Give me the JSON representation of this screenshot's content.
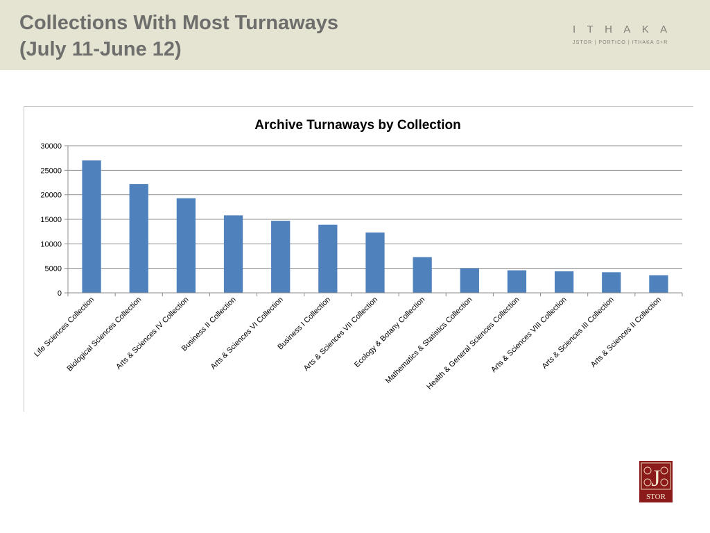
{
  "header": {
    "title_line1": "Collections With Most Turnaways",
    "title_line2": "(July 11-June 12)",
    "brand_word": "ITHAKA",
    "brand_subtitle": "JSTOR | PORTICO | ITHAKA S+R"
  },
  "logo": {
    "top_letter": "J",
    "bottom_text": "STOR"
  },
  "colors": {
    "header_bg": "#e5e3d1",
    "bar": "#4f81bd",
    "logo_red": "#8b1a1a"
  },
  "chart_data": {
    "type": "bar",
    "title": "Archive Turnaways by Collection",
    "xlabel": "",
    "ylabel": "",
    "ylim": [
      0,
      30000
    ],
    "yticks": [
      0,
      5000,
      10000,
      15000,
      20000,
      25000,
      30000
    ],
    "grid": true,
    "legend": "none",
    "categories": [
      "Life Sciences Collection",
      "Biological Sciences Collection",
      "Arts & Sciences IV Collection",
      "Business II Collection",
      "Arts & Sciences VI Collection",
      "Business I Collection",
      "Arts & Sciences VII Collection",
      "Ecology & Botany Collection",
      "Mathematics & Statistics Collection",
      "Health & General Sciences Collection",
      "Arts & Sciences VIII Collection",
      "Arts & Sciences III Collection",
      "Arts & Sciences II Collection"
    ],
    "values": [
      27000,
      22200,
      19300,
      15800,
      14700,
      13900,
      12300,
      7300,
      5000,
      4600,
      4400,
      4200,
      3600
    ]
  }
}
